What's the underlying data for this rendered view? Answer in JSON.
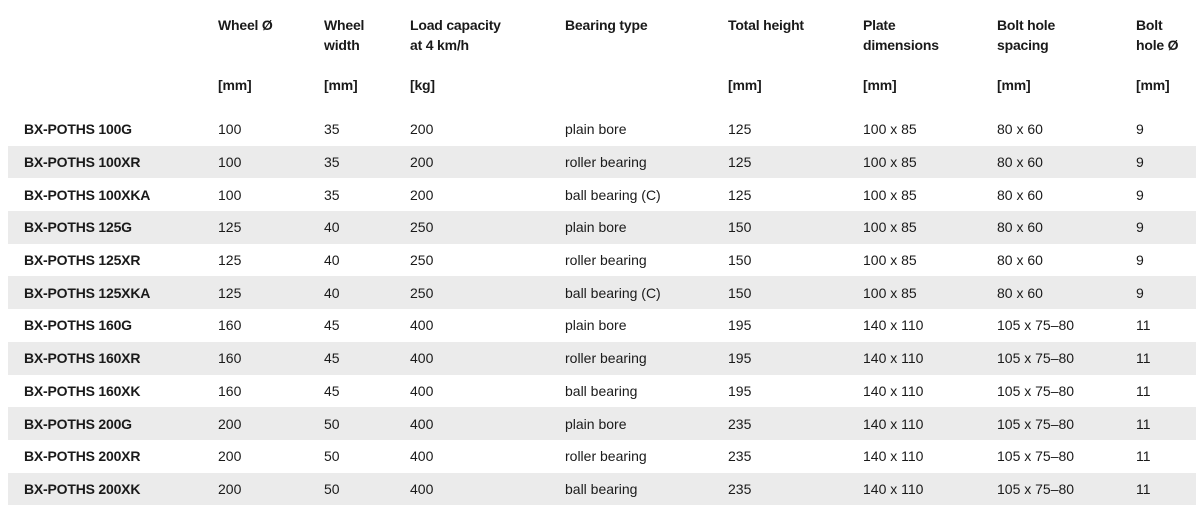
{
  "table": {
    "headers": [
      {
        "title": "",
        "unit": ""
      },
      {
        "title": "Wheel Ø",
        "unit": "[mm]"
      },
      {
        "title": "Wheel\nwidth",
        "unit": "[mm]"
      },
      {
        "title": "Load capacity\nat 4 km/h",
        "unit": "[kg]"
      },
      {
        "title": "Bearing type",
        "unit": ""
      },
      {
        "title": "Total height",
        "unit": "[mm]"
      },
      {
        "title": "Plate\ndimensions",
        "unit": "[mm]"
      },
      {
        "title": "Bolt hole\nspacing",
        "unit": "[mm]"
      },
      {
        "title": "Bolt\nhole Ø",
        "unit": "[mm]"
      }
    ],
    "rows": [
      [
        "BX-POTHS 100G",
        "100",
        "35",
        "200",
        "plain bore",
        "125",
        "100 x 85",
        "80 x 60",
        "9"
      ],
      [
        "BX-POTHS 100XR",
        "100",
        "35",
        "200",
        "roller bearing",
        "125",
        "100 x 85",
        "80 x 60",
        "9"
      ],
      [
        "BX-POTHS 100XKA",
        "100",
        "35",
        "200",
        "ball bearing (C)",
        "125",
        "100 x 85",
        "80 x 60",
        "9"
      ],
      [
        "BX-POTHS 125G",
        "125",
        "40",
        "250",
        "plain bore",
        "150",
        "100 x 85",
        "80 x 60",
        "9"
      ],
      [
        "BX-POTHS 125XR",
        "125",
        "40",
        "250",
        "roller bearing",
        "150",
        "100 x 85",
        "80 x 60",
        "9"
      ],
      [
        "BX-POTHS 125XKA",
        "125",
        "40",
        "250",
        "ball bearing (C)",
        "150",
        "100 x 85",
        "80 x 60",
        "9"
      ],
      [
        "BX-POTHS 160G",
        "160",
        "45",
        "400",
        "plain bore",
        "195",
        "140 x 110",
        "105 x 75–80",
        "11"
      ],
      [
        "BX-POTHS 160XR",
        "160",
        "45",
        "400",
        "roller bearing",
        "195",
        "140 x 110",
        "105 x 75–80",
        "11"
      ],
      [
        "BX-POTHS 160XK",
        "160",
        "45",
        "400",
        "ball bearing",
        "195",
        "140 x 110",
        "105 x 75–80",
        "11"
      ],
      [
        "BX-POTHS 200G",
        "200",
        "50",
        "400",
        "plain bore",
        "235",
        "140 x 110",
        "105 x 75–80",
        "11"
      ],
      [
        "BX-POTHS 200XR",
        "200",
        "50",
        "400",
        "roller bearing",
        "235",
        "140 x 110",
        "105 x 75–80",
        "11"
      ],
      [
        "BX-POTHS 200XK",
        "200",
        "50",
        "400",
        "ball bearing",
        "235",
        "140 x 110",
        "105 x 75–80",
        "11"
      ]
    ]
  },
  "colors": {
    "stripe": "#ebebeb",
    "background": "#ffffff",
    "text": "#1a1a1a"
  }
}
